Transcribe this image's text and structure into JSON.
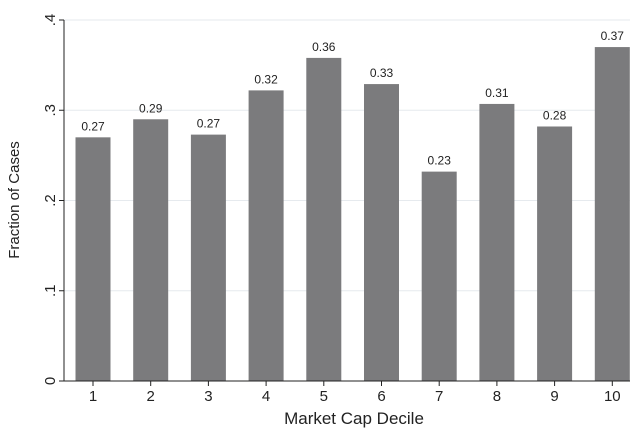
{
  "chart_data": {
    "type": "bar",
    "title": "",
    "xlabel": "Market Cap Decile",
    "ylabel": "Fraction of Cases",
    "categories": [
      "1",
      "2",
      "3",
      "4",
      "5",
      "6",
      "7",
      "8",
      "9",
      "10"
    ],
    "values": [
      0.27,
      0.29,
      0.273,
      0.322,
      0.358,
      0.329,
      0.232,
      0.307,
      0.282,
      0.37
    ],
    "data_labels": [
      "0.27",
      "0.29",
      "0.27",
      "0.32",
      "0.36",
      "0.33",
      "0.23",
      "0.31",
      "0.28",
      "0.37"
    ],
    "yticks": [
      0,
      0.1,
      0.2,
      0.3,
      0.4
    ],
    "ytick_labels": [
      "0",
      ".1",
      ".2",
      ".3",
      ".4"
    ],
    "ylim": [
      0,
      0.4
    ],
    "grid": true,
    "legend": "none",
    "colors": {
      "bar": "#7b7b7d",
      "grid": "#e6eaee",
      "axis": "#222222"
    }
  }
}
